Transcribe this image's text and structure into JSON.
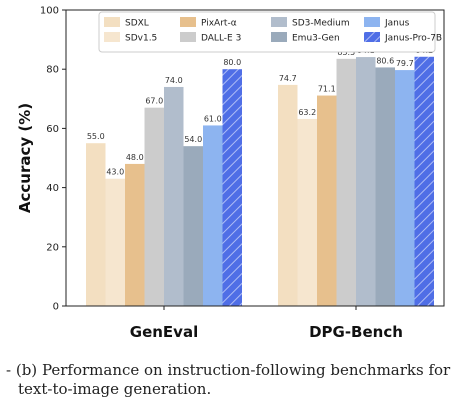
{
  "chart_data": {
    "type": "bar",
    "categories": [
      "GenEval",
      "DPG-Bench"
    ],
    "ylabel": "Accuracy (%)",
    "ylim": [
      0,
      100
    ],
    "yticks": [
      0,
      20,
      40,
      60,
      80,
      100
    ],
    "grid": false,
    "legend_position": "top",
    "series": [
      {
        "name": "SDXL",
        "color": "#f3dfc1",
        "values": [
          55.0,
          74.7
        ],
        "labels": [
          "55.0",
          "74.7"
        ]
      },
      {
        "name": "SDv1.5",
        "color": "#f6e6cf",
        "values": [
          43.0,
          63.2
        ],
        "labels": [
          "43.0",
          "63.2"
        ]
      },
      {
        "name": "PixArt-α",
        "color": "#e7c08d",
        "values": [
          48.0,
          71.1
        ],
        "labels": [
          "48.0",
          "71.1"
        ]
      },
      {
        "name": "DALL-E 3",
        "color": "#cccccc",
        "values": [
          67.0,
          83.5
        ],
        "labels": [
          "67.0",
          "83.5"
        ]
      },
      {
        "name": "SD3-Medium",
        "color": "#b1bdcc",
        "values": [
          74.0,
          84.1
        ],
        "labels": [
          "74.0",
          "84.1"
        ]
      },
      {
        "name": "Emu3-Gen",
        "color": "#9aaabb",
        "values": [
          54.0,
          80.6
        ],
        "labels": [
          "54.0",
          "80.6"
        ]
      },
      {
        "name": "Janus",
        "color": "#8db4f0",
        "values": [
          61.0,
          79.7
        ],
        "labels": [
          "61.0",
          "79.7"
        ]
      },
      {
        "name": "Janus-Pro-7B",
        "color": "#4f6ee6",
        "hatched": true,
        "values": [
          80.0,
          84.2
        ],
        "labels": [
          "80.0",
          "84.2"
        ]
      }
    ]
  },
  "caption": {
    "prefix": "- (b)",
    "line1": "Performance on instruction-following benchmarks for",
    "line2": "text-to-image generation."
  }
}
